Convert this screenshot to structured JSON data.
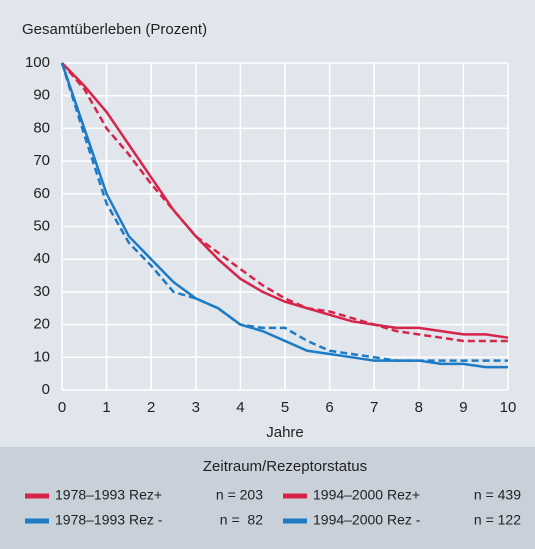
{
  "chart_data": {
    "type": "line",
    "title": "Gesamtüberleben (Prozent)",
    "x_label": "Jahre",
    "x": [
      0,
      0.5,
      1,
      1.5,
      2,
      2.5,
      3,
      3.5,
      4,
      4.5,
      5,
      5.5,
      6,
      6.5,
      7,
      7.5,
      8,
      8.5,
      9,
      9.5,
      10
    ],
    "xlim": [
      0,
      10
    ],
    "xticks": [
      0,
      1,
      2,
      3,
      4,
      5,
      6,
      7,
      8,
      9,
      10
    ],
    "ylim": [
      0,
      100
    ],
    "yticks": [
      0,
      10,
      20,
      30,
      40,
      50,
      60,
      70,
      80,
      90,
      100
    ],
    "grid": true,
    "legend_title": "Zeitraum/Rezeptorstatus",
    "series": [
      {
        "name": "1978–1993 Rez+",
        "n_label": "n = 203",
        "color": "#d6244a",
        "dashed": false,
        "values": [
          100,
          93,
          85,
          75,
          65,
          55,
          47,
          40,
          34,
          30,
          27,
          25,
          23,
          21,
          20,
          19,
          19,
          18,
          17,
          17,
          16
        ]
      },
      {
        "name": "1994–2000 Rez+",
        "n_label": "n = 439",
        "color": "#d6244a",
        "dashed": true,
        "values": [
          100,
          92,
          80,
          72,
          63,
          55,
          47,
          42,
          37,
          32,
          28,
          25,
          24,
          22,
          20,
          18,
          17,
          16,
          15,
          15,
          15
        ]
      },
      {
        "name": "1978–1993 Rez -",
        "n_label": "n =  82",
        "color": "#1d7ac4",
        "dashed": false,
        "values": [
          100,
          80,
          60,
          47,
          40,
          33,
          28,
          25,
          20,
          18,
          15,
          12,
          11,
          10,
          9,
          9,
          9,
          8,
          8,
          7,
          7
        ]
      },
      {
        "name": "1994–2000 Rez -",
        "n_label": "n = 122",
        "color": "#1d7ac4",
        "dashed": true,
        "values": [
          100,
          78,
          57,
          45,
          38,
          30,
          28,
          25,
          20,
          19,
          19,
          15,
          12,
          11,
          10,
          9,
          9,
          9,
          9,
          9,
          9
        ]
      }
    ]
  }
}
